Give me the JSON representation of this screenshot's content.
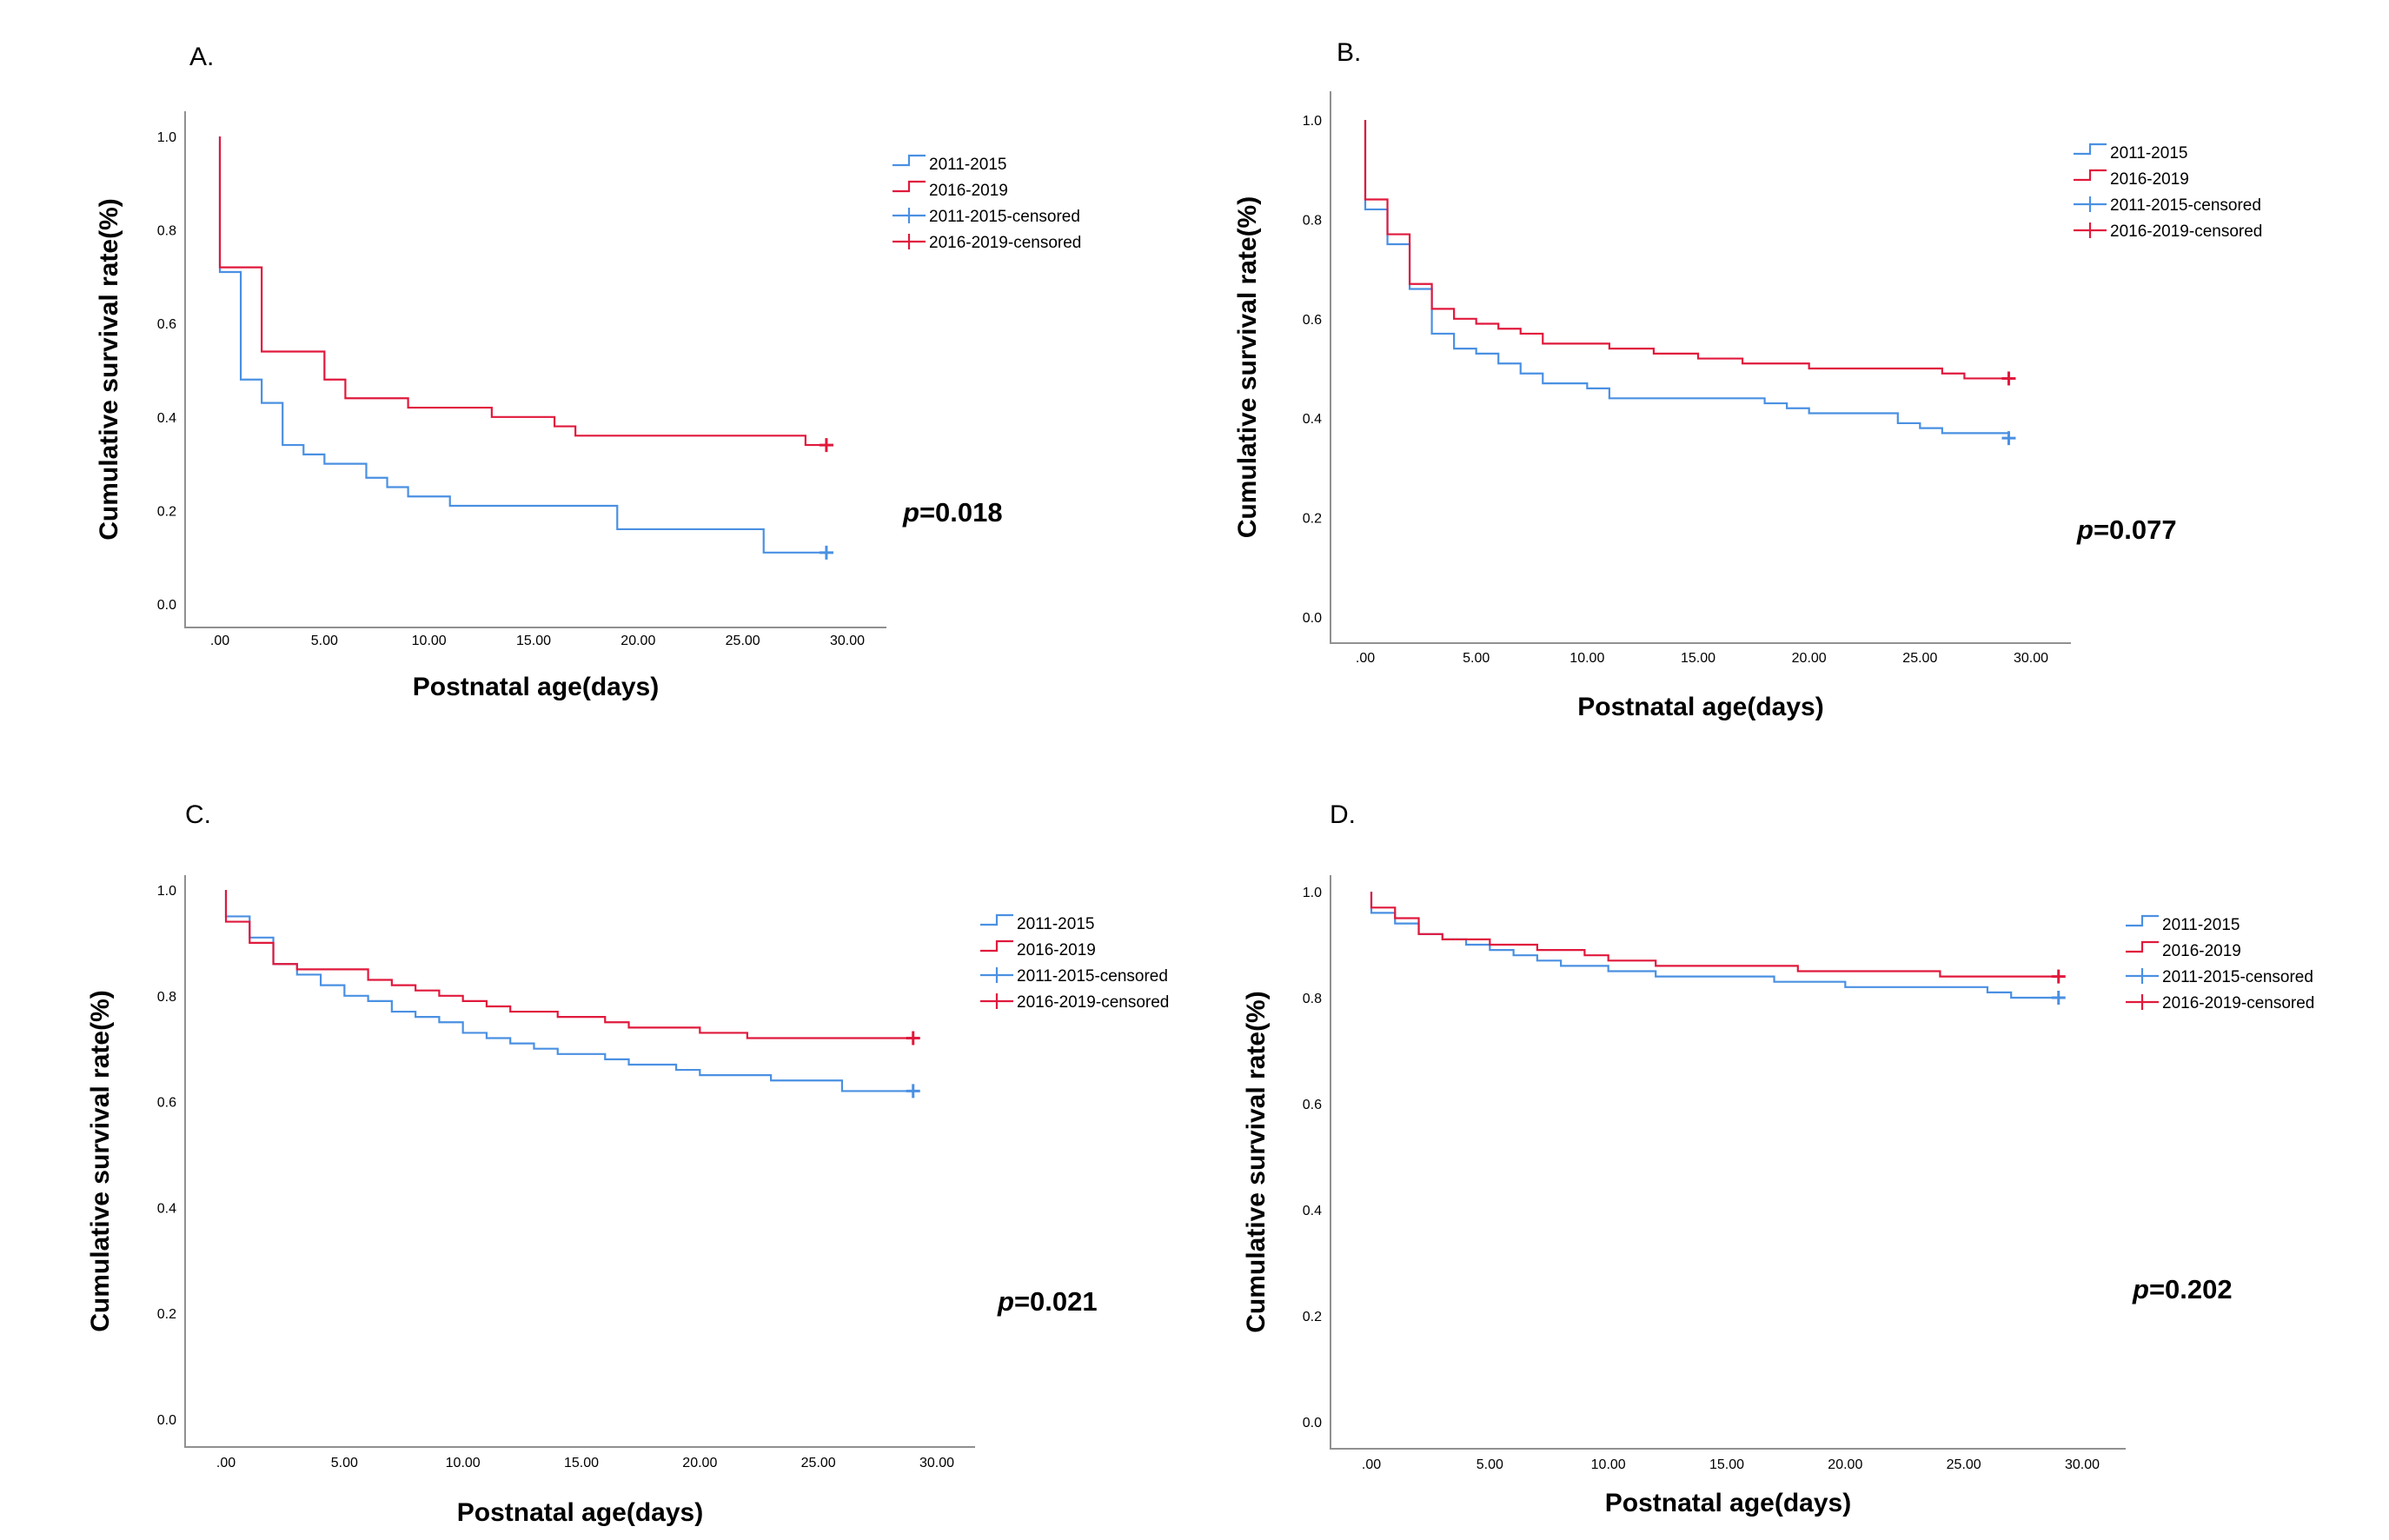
{
  "colors": {
    "series_2011_2015": "#4a90e2",
    "series_2016_2019": "#e0193c"
  },
  "chart_data": [
    {
      "panel": "A.",
      "type": "line",
      "step": true,
      "xlabel": "Postnatal age(days)",
      "ylabel": "Cumulative survival rate(%)",
      "xlim": [
        0,
        30
      ],
      "ylim": [
        0,
        1
      ],
      "xticks": [
        ".00",
        "5.00",
        "10.00",
        "15.00",
        "20.00",
        "25.00",
        "30.00"
      ],
      "yticks": [
        "0.0",
        "0.2",
        "0.4",
        "0.6",
        "0.8",
        "1.0"
      ],
      "legend": [
        "2011-2015",
        "2016-2019",
        "2011-2015-censored",
        "2016-2019-censored"
      ],
      "legend_position": "top-right",
      "p_value_prefix": "p",
      "p_value_suffix": "=0.018",
      "series": [
        {
          "name": "2011-2015",
          "censor_at": 29,
          "x": [
            0,
            0,
            1,
            1,
            2,
            3,
            4,
            5,
            7,
            8,
            9,
            11,
            19,
            26,
            29
          ],
          "y": [
            1.0,
            0.71,
            0.71,
            0.48,
            0.43,
            0.34,
            0.32,
            0.3,
            0.27,
            0.25,
            0.23,
            0.21,
            0.16,
            0.11,
            0.11
          ]
        },
        {
          "name": "2016-2019",
          "censor_at": 29,
          "x": [
            0,
            0,
            1,
            2,
            5,
            6,
            9,
            13,
            16,
            17,
            28,
            29
          ],
          "y": [
            1.0,
            0.72,
            0.72,
            0.54,
            0.48,
            0.44,
            0.42,
            0.4,
            0.38,
            0.36,
            0.34,
            0.34
          ]
        }
      ]
    },
    {
      "panel": "B.",
      "type": "line",
      "step": true,
      "xlabel": "Postnatal age(days)",
      "ylabel": "Cumulative survival rate(%)",
      "xlim": [
        0,
        30
      ],
      "ylim": [
        0,
        1
      ],
      "xticks": [
        ".00",
        "5.00",
        "10.00",
        "15.00",
        "20.00",
        "25.00",
        "30.00"
      ],
      "yticks": [
        "0.0",
        "0.2",
        "0.4",
        "0.6",
        "0.8",
        "1.0"
      ],
      "legend": [
        "2011-2015",
        "2016-2019",
        "2011-2015-censored",
        "2016-2019-censored"
      ],
      "legend_position": "top-right",
      "p_value_prefix": "p",
      "p_value_suffix": "=0.077",
      "series": [
        {
          "name": "2011-2015",
          "censor_at": 29,
          "x": [
            0,
            0,
            1,
            2,
            3,
            4,
            5,
            6,
            7,
            8,
            10,
            11,
            18,
            19,
            20,
            23,
            24,
            25,
            26,
            29
          ],
          "y": [
            1.0,
            0.82,
            0.75,
            0.66,
            0.57,
            0.54,
            0.53,
            0.51,
            0.49,
            0.47,
            0.46,
            0.44,
            0.43,
            0.42,
            0.41,
            0.41,
            0.39,
            0.38,
            0.37,
            0.36
          ]
        },
        {
          "name": "2016-2019",
          "censor_at": 29,
          "x": [
            0,
            0,
            1,
            2,
            3,
            4,
            5,
            6,
            7,
            8,
            11,
            13,
            15,
            17,
            20,
            25,
            26,
            27,
            29
          ],
          "y": [
            1.0,
            0.84,
            0.77,
            0.67,
            0.62,
            0.6,
            0.59,
            0.58,
            0.57,
            0.55,
            0.54,
            0.53,
            0.52,
            0.51,
            0.5,
            0.5,
            0.49,
            0.48,
            0.48
          ]
        }
      ]
    },
    {
      "panel": "C.",
      "type": "line",
      "step": true,
      "xlabel": "Postnatal age(days)",
      "ylabel": "Cumulative survival rate(%)",
      "xlim": [
        0,
        30
      ],
      "ylim": [
        0,
        1
      ],
      "xticks": [
        ".00",
        "5.00",
        "10.00",
        "15.00",
        "20.00",
        "25.00",
        "30.00"
      ],
      "yticks": [
        "0.0",
        "0.2",
        "0.4",
        "0.6",
        "0.8",
        "1.0"
      ],
      "legend": [
        "2011-2015",
        "2016-2019",
        "2011-2015-censored",
        "2016-2019-censored"
      ],
      "legend_position": "top-right",
      "p_value_prefix": "p",
      "p_value_suffix": "=0.021",
      "series": [
        {
          "name": "2011-2015",
          "censor_at": 29,
          "x": [
            0,
            0,
            1,
            2,
            3,
            4,
            5,
            6,
            7,
            8,
            9,
            10,
            11,
            12,
            13,
            14,
            15,
            16,
            17,
            18,
            19,
            20,
            22,
            23,
            24,
            26,
            29
          ],
          "y": [
            1.0,
            0.95,
            0.91,
            0.86,
            0.84,
            0.82,
            0.8,
            0.79,
            0.77,
            0.76,
            0.75,
            0.73,
            0.72,
            0.71,
            0.7,
            0.69,
            0.69,
            0.68,
            0.67,
            0.67,
            0.66,
            0.65,
            0.65,
            0.64,
            0.64,
            0.62,
            0.62
          ]
        },
        {
          "name": "2016-2019",
          "censor_at": 29,
          "x": [
            0,
            0,
            1,
            2,
            3,
            6,
            7,
            8,
            9,
            10,
            11,
            12,
            13,
            14,
            15,
            16,
            17,
            18,
            20,
            22,
            23,
            29
          ],
          "y": [
            1.0,
            0.94,
            0.9,
            0.86,
            0.85,
            0.83,
            0.82,
            0.81,
            0.8,
            0.79,
            0.78,
            0.77,
            0.77,
            0.76,
            0.76,
            0.75,
            0.74,
            0.74,
            0.73,
            0.72,
            0.72,
            0.72
          ]
        }
      ]
    },
    {
      "panel": "D.",
      "type": "line",
      "step": true,
      "xlabel": "Postnatal age(days)",
      "ylabel": "Cumulative survival rate(%)",
      "xlim": [
        0,
        30
      ],
      "ylim": [
        0,
        1
      ],
      "xticks": [
        ".00",
        "5.00",
        "10.00",
        "15.00",
        "20.00",
        "25.00",
        "30.00"
      ],
      "yticks": [
        "0.0",
        "0.2",
        "0.4",
        "0.6",
        "0.8",
        "1.0"
      ],
      "legend": [
        "2011-2015",
        "2016-2019",
        "2011-2015-censored",
        "2016-2019-censored"
      ],
      "legend_position": "top-right",
      "p_value_prefix": "p",
      "p_value_suffix": "=0.202",
      "series": [
        {
          "name": "2011-2015",
          "censor_at": 29,
          "x": [
            0,
            0,
            1,
            2,
            3,
            4,
            5,
            6,
            7,
            8,
            9,
            10,
            12,
            14,
            17,
            20,
            24,
            26,
            27,
            29
          ],
          "y": [
            1.0,
            0.96,
            0.94,
            0.92,
            0.91,
            0.9,
            0.89,
            0.88,
            0.87,
            0.86,
            0.86,
            0.85,
            0.84,
            0.84,
            0.83,
            0.82,
            0.82,
            0.81,
            0.8,
            0.8
          ]
        },
        {
          "name": "2016-2019",
          "censor_at": 29,
          "x": [
            0,
            0,
            1,
            2,
            3,
            4,
            5,
            6,
            7,
            8,
            9,
            10,
            11,
            12,
            14,
            16,
            18,
            20,
            22,
            24,
            26,
            29
          ],
          "y": [
            1.0,
            0.97,
            0.95,
            0.92,
            0.91,
            0.91,
            0.9,
            0.9,
            0.89,
            0.89,
            0.88,
            0.87,
            0.87,
            0.86,
            0.86,
            0.86,
            0.85,
            0.85,
            0.85,
            0.84,
            0.84,
            0.84
          ]
        }
      ]
    }
  ]
}
